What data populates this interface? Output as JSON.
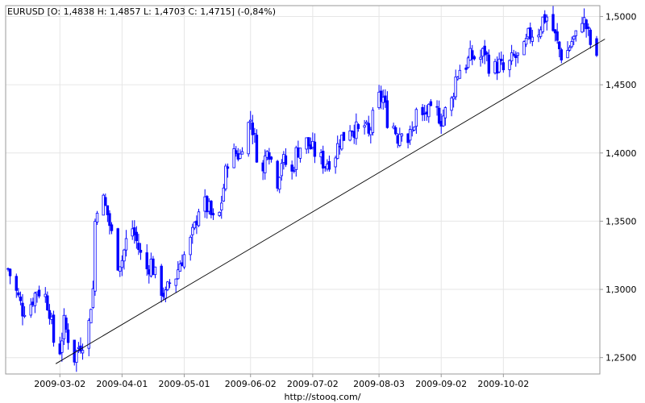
{
  "header": {
    "title": "EURUSD [O: 1,4838  H: 1,4857  L: 1,4703  C: 1,4715] (-0,84%)"
  },
  "footer": {
    "source": "http://stooq.com/"
  },
  "colors": {
    "candle": "#0000ff",
    "grid": "#e6e6e6",
    "trendline": "#000000",
    "axis": "#9a9a9a"
  },
  "chart_data": {
    "type": "candlestick",
    "symbol": "EURUSD",
    "ylim": [
      1.238,
      1.508
    ],
    "xlim": [
      "2009-02-05",
      "2009-11-16"
    ],
    "y_ticks": [
      1.25,
      1.3,
      1.35,
      1.4,
      1.45,
      1.5
    ],
    "y_tick_labels": [
      "1,2500",
      "1,3000",
      "1,3500",
      "1,4000",
      "1,4500",
      "1,5000"
    ],
    "x_ticks": [
      "2009-03-02",
      "2009-04-01",
      "2009-05-01",
      "2009-06-02",
      "2009-07-02",
      "2009-08-03",
      "2009-09-02",
      "2009-10-02"
    ],
    "x_tick_labels": [
      "2009-03-02",
      "2009-04-01",
      "2009-05-01",
      "2009-06-02",
      "2009-07-02",
      "2009-08-03",
      "2009-09-02",
      "2009-10-02"
    ],
    "grid": true,
    "last_bar": {
      "date": "2009-11-16",
      "open": 1.4838,
      "high": 1.4857,
      "low": 1.4703,
      "close": 1.4715,
      "change_pct": -0.84
    },
    "close_path": [
      [
        "2009-02-05",
        1.315
      ],
      [
        "2009-02-09",
        1.298
      ],
      [
        "2009-02-12",
        1.285
      ],
      [
        "2009-02-16",
        1.29
      ],
      [
        "2009-02-19",
        1.3
      ],
      [
        "2009-02-23",
        1.295
      ],
      [
        "2009-02-25",
        1.285
      ],
      [
        "2009-02-27",
        1.262
      ],
      [
        "2009-03-02",
        1.256
      ],
      [
        "2009-03-04",
        1.275
      ],
      [
        "2009-03-06",
        1.265
      ],
      [
        "2009-03-09",
        1.25
      ],
      [
        "2009-03-11",
        1.258
      ],
      [
        "2009-03-13",
        1.262
      ],
      [
        "2009-03-16",
        1.275
      ],
      [
        "2009-03-17",
        1.29
      ],
      [
        "2009-03-18",
        1.3
      ],
      [
        "2009-03-19",
        1.35
      ],
      [
        "2009-03-20",
        1.362
      ],
      [
        "2009-03-23",
        1.365
      ],
      [
        "2009-03-25",
        1.355
      ],
      [
        "2009-03-27",
        1.34
      ],
      [
        "2009-03-30",
        1.32
      ],
      [
        "2009-04-01",
        1.322
      ],
      [
        "2009-04-03",
        1.335
      ],
      [
        "2009-04-06",
        1.345
      ],
      [
        "2009-04-08",
        1.335
      ],
      [
        "2009-04-10",
        1.325
      ],
      [
        "2009-04-13",
        1.315
      ],
      [
        "2009-04-15",
        1.32
      ],
      [
        "2009-04-17",
        1.31
      ],
      [
        "2009-04-20",
        1.3
      ],
      [
        "2009-04-22",
        1.295
      ],
      [
        "2009-04-24",
        1.305
      ],
      [
        "2009-04-27",
        1.31
      ],
      [
        "2009-04-29",
        1.32
      ],
      [
        "2009-05-01",
        1.325
      ],
      [
        "2009-05-04",
        1.335
      ],
      [
        "2009-05-06",
        1.345
      ],
      [
        "2009-05-08",
        1.36
      ],
      [
        "2009-05-11",
        1.362
      ],
      [
        "2009-05-13",
        1.358
      ],
      [
        "2009-05-15",
        1.35
      ],
      [
        "2009-05-18",
        1.355
      ],
      [
        "2009-05-20",
        1.375
      ],
      [
        "2009-05-22",
        1.395
      ],
      [
        "2009-05-26",
        1.4
      ],
      [
        "2009-05-28",
        1.398
      ],
      [
        "2009-05-29",
        1.408
      ],
      [
        "2009-06-02",
        1.425
      ],
      [
        "2009-06-03",
        1.418
      ],
      [
        "2009-06-05",
        1.4
      ],
      [
        "2009-06-08",
        1.385
      ],
      [
        "2009-06-10",
        1.408
      ],
      [
        "2009-06-12",
        1.395
      ],
      [
        "2009-06-15",
        1.38
      ],
      [
        "2009-06-17",
        1.395
      ],
      [
        "2009-06-19",
        1.392
      ],
      [
        "2009-06-22",
        1.385
      ],
      [
        "2009-06-24",
        1.4
      ],
      [
        "2009-06-26",
        1.405
      ],
      [
        "2009-06-29",
        1.408
      ],
      [
        "2009-07-02",
        1.402
      ],
      [
        "2009-07-06",
        1.395
      ],
      [
        "2009-07-08",
        1.392
      ],
      [
        "2009-07-10",
        1.395
      ],
      [
        "2009-07-13",
        1.4
      ],
      [
        "2009-07-15",
        1.41
      ],
      [
        "2009-07-17",
        1.412
      ],
      [
        "2009-07-20",
        1.42
      ],
      [
        "2009-07-22",
        1.418
      ],
      [
        "2009-07-24",
        1.415
      ],
      [
        "2009-07-27",
        1.42
      ],
      [
        "2009-07-29",
        1.412
      ],
      [
        "2009-07-31",
        1.425
      ],
      [
        "2009-08-03",
        1.44
      ],
      [
        "2009-08-05",
        1.44
      ],
      [
        "2009-08-07",
        1.425
      ],
      [
        "2009-08-10",
        1.42
      ],
      [
        "2009-08-12",
        1.412
      ],
      [
        "2009-08-14",
        1.42
      ],
      [
        "2009-08-17",
        1.41
      ],
      [
        "2009-08-19",
        1.415
      ],
      [
        "2009-08-21",
        1.43
      ],
      [
        "2009-08-24",
        1.425
      ],
      [
        "2009-08-26",
        1.43
      ],
      [
        "2009-08-28",
        1.428
      ],
      [
        "2009-08-31",
        1.43
      ],
      [
        "2009-09-02",
        1.425
      ],
      [
        "2009-09-04",
        1.43
      ],
      [
        "2009-09-07",
        1.438
      ],
      [
        "2009-09-09",
        1.455
      ],
      [
        "2009-09-11",
        1.462
      ],
      [
        "2009-09-14",
        1.465
      ],
      [
        "2009-09-16",
        1.47
      ],
      [
        "2009-09-18",
        1.47
      ],
      [
        "2009-09-21",
        1.47
      ],
      [
        "2009-09-23",
        1.475
      ],
      [
        "2009-09-25",
        1.465
      ],
      [
        "2009-09-28",
        1.462
      ],
      [
        "2009-09-30",
        1.465
      ],
      [
        "2009-10-02",
        1.46
      ],
      [
        "2009-10-05",
        1.465
      ],
      [
        "2009-10-07",
        1.47
      ],
      [
        "2009-10-09",
        1.47
      ],
      [
        "2009-10-12",
        1.475
      ],
      [
        "2009-10-14",
        1.485
      ],
      [
        "2009-10-16",
        1.488
      ],
      [
        "2009-10-19",
        1.49
      ],
      [
        "2009-10-21",
        1.498
      ],
      [
        "2009-10-23",
        1.5
      ],
      [
        "2009-10-26",
        1.49
      ],
      [
        "2009-10-28",
        1.48
      ],
      [
        "2009-10-30",
        1.472
      ],
      [
        "2009-11-02",
        1.475
      ],
      [
        "2009-11-04",
        1.482
      ],
      [
        "2009-11-06",
        1.485
      ],
      [
        "2009-11-09",
        1.5
      ],
      [
        "2009-11-11",
        1.492
      ],
      [
        "2009-11-13",
        1.48
      ],
      [
        "2009-11-16",
        1.4715
      ]
    ],
    "trendline": {
      "start": [
        "2009-02-28",
        1.2455
      ],
      "end": [
        "2009-11-20",
        1.4835
      ]
    }
  }
}
